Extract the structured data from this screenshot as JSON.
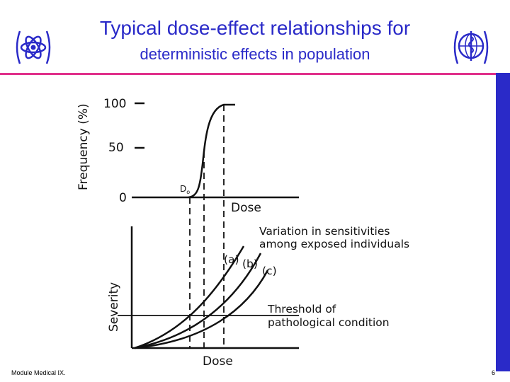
{
  "slide": {
    "title_line1": "Typical dose-effect relationships for",
    "title_line2": "deterministic effects in population",
    "footer_left": "Module Medical IX.",
    "page_number": "6",
    "accent_color": "#2a2ac8",
    "rule_color": "#e0308a",
    "logo_left": "iaea-atom-logo-icon",
    "logo_right": "who-emblem-icon"
  },
  "figure": {
    "top_panel": {
      "y_axis_label": "Frequency (%)",
      "y_tick_labels": [
        "100",
        "50",
        "0"
      ],
      "threshold_marker": "D",
      "threshold_marker_sub": "o",
      "x_axis_label": "Dose"
    },
    "bottom_panel": {
      "y_axis_label": "Severity",
      "x_axis_label": "Dose",
      "variation_label_line1": "Variation in sensitivities",
      "variation_label_line2": "among exposed individuals",
      "curve_labels": [
        "(a)",
        "(b)",
        "(c)"
      ],
      "threshold_label_line1": "Threshold of",
      "threshold_label_line2": "pathological condition"
    }
  }
}
